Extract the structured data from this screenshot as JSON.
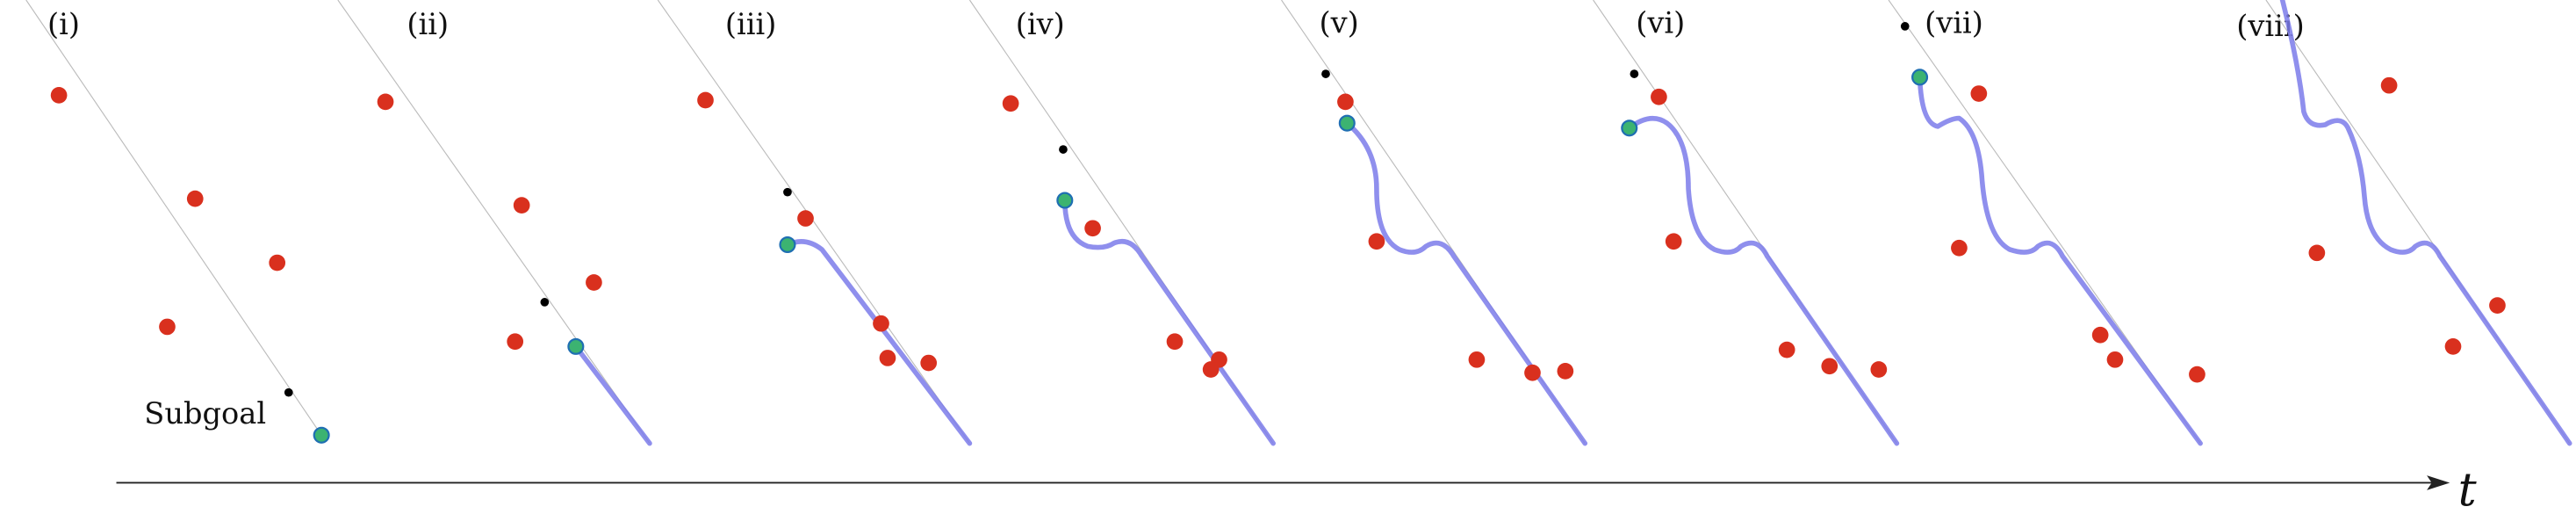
{
  "panels": [
    "(i)",
    "(ii)",
    "(iii)",
    "(iv)",
    "(v)",
    "(vi)",
    "(vii)",
    "(viii)"
  ],
  "annotations": {
    "subgoal": "Subgoal"
  },
  "axis": {
    "label": "t"
  }
}
